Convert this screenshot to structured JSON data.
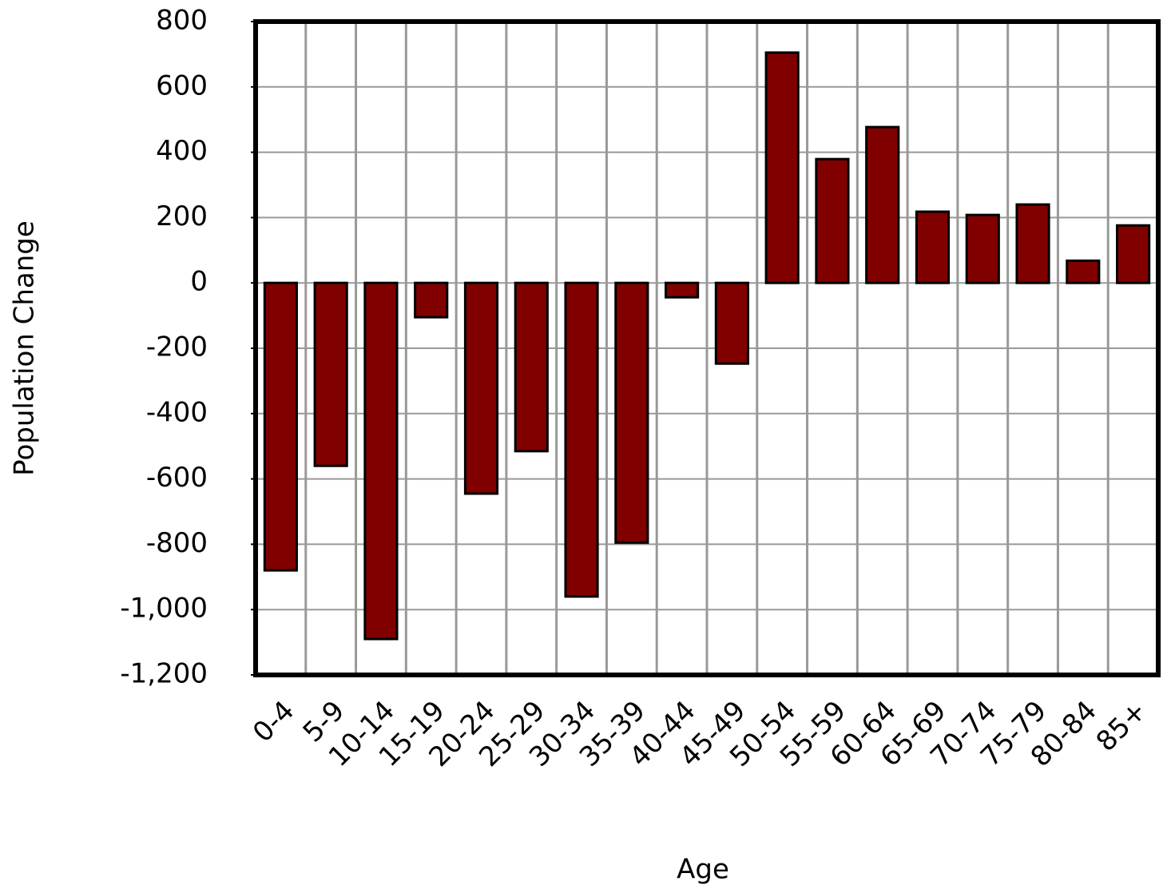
{
  "chart_data": {
    "type": "bar",
    "x_label": "Age",
    "y_label": "Population Change",
    "categories": [
      "0-4",
      "5-9",
      "10-14",
      "15-19",
      "20-24",
      "25-29",
      "30-34",
      "35-39",
      "40-44",
      "45-49",
      "50-54",
      "55-59",
      "60-64",
      "65-69",
      "70-74",
      "75-79",
      "80-84",
      "85+"
    ],
    "values": [
      -880,
      -560,
      -1090,
      -105,
      -645,
      -515,
      -960,
      -795,
      -44,
      -247,
      705,
      379,
      477,
      218,
      208,
      240,
      68,
      176
    ],
    "color": "#800000",
    "ylim": [
      -1200,
      800
    ],
    "yticks": [
      {
        "value": -1200,
        "label": "-1,200"
      },
      {
        "value": -1000,
        "label": "-1,000"
      },
      -800,
      -600,
      -400,
      -200,
      0,
      200,
      400,
      600,
      800
    ],
    "grid": true
  }
}
